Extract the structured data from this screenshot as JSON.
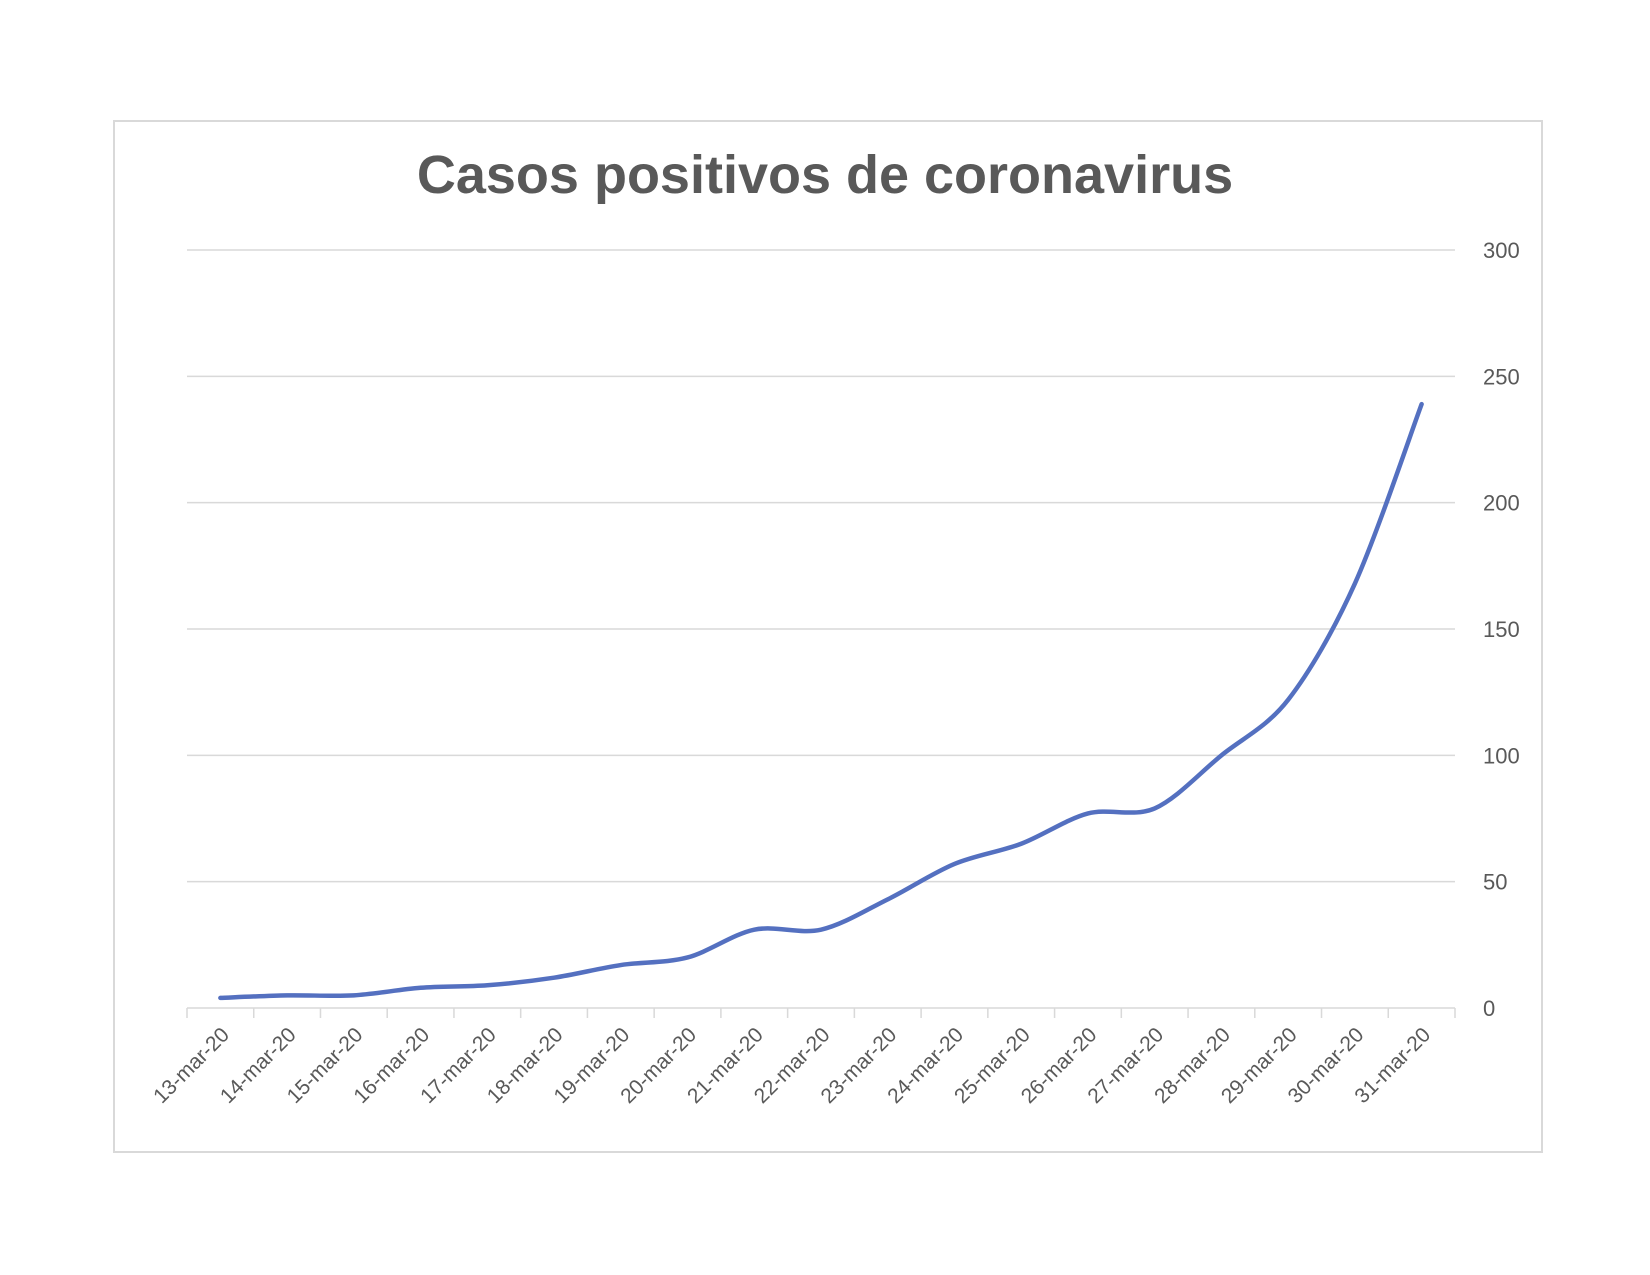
{
  "chart_data": {
    "type": "line",
    "title": "Casos positivos de coronavirus",
    "xlabel": "",
    "ylabel": "",
    "categories": [
      "13-mar-20",
      "14-mar-20",
      "15-mar-20",
      "16-mar-20",
      "17-mar-20",
      "18-mar-20",
      "19-mar-20",
      "20-mar-20",
      "21-mar-20",
      "22-mar-20",
      "23-mar-20",
      "24-mar-20",
      "25-mar-20",
      "26-mar-20",
      "27-mar-20",
      "28-mar-20",
      "29-mar-20",
      "30-mar-20",
      "31-mar-20"
    ],
    "series": [
      {
        "values": [
          4,
          5,
          5,
          8,
          9,
          12,
          17,
          20,
          31,
          31,
          43,
          57,
          65,
          77,
          79,
          100,
          122,
          168,
          239
        ]
      }
    ],
    "ylim": [
      0,
      300
    ],
    "yticks": [
      0,
      50,
      100,
      150,
      200,
      250,
      300
    ],
    "y_axis_side": "right",
    "grid": true,
    "smooth": true,
    "line_color": "#5470c0"
  }
}
